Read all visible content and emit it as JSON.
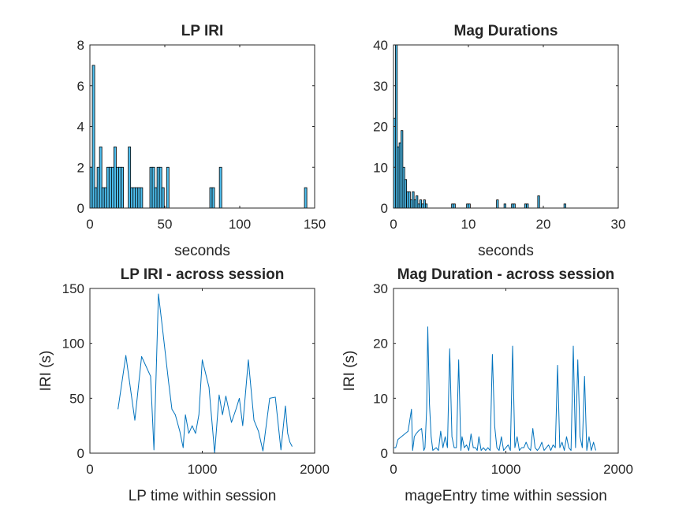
{
  "figure": {
    "background": "#ffffff"
  },
  "chart_data": [
    {
      "id": "lp-iri-hist",
      "type": "bar",
      "title": "LP IRI",
      "xlabel": "seconds",
      "ylabel": "",
      "xlim": [
        0,
        150
      ],
      "ylim": [
        0,
        8
      ],
      "xticks": [
        0,
        50,
        100,
        150
      ],
      "yticks": [
        0,
        2,
        4,
        6,
        8
      ],
      "bar_color": "#4DBEEE",
      "edge_color": "#000000",
      "bin_width": 1.6,
      "x": [
        0.8,
        2.4,
        4.0,
        5.6,
        7.2,
        8.8,
        10.4,
        12.0,
        13.6,
        15.2,
        16.8,
        18.4,
        20.0,
        21.6,
        26.4,
        28.0,
        29.6,
        31.2,
        32.8,
        34.4,
        40.8,
        42.4,
        44.0,
        45.6,
        47.2,
        48.8,
        52.0,
        80.8,
        82.4,
        87.2,
        144.0
      ],
      "values": [
        2,
        7,
        1,
        2,
        3,
        1,
        1,
        2,
        2,
        2,
        3,
        2,
        2,
        2,
        3,
        1,
        1,
        1,
        1,
        1,
        2,
        2,
        1,
        2,
        2,
        1,
        2,
        1,
        1,
        2,
        1
      ]
    },
    {
      "id": "mag-durations-hist",
      "type": "bar",
      "title": "Mag Durations",
      "xlabel": "seconds",
      "ylabel": "",
      "xlim": [
        0,
        30
      ],
      "ylim": [
        0,
        40
      ],
      "xticks": [
        0,
        10,
        20,
        30
      ],
      "yticks": [
        0,
        10,
        20,
        30,
        40
      ],
      "bar_color": "#4DBEEE",
      "edge_color": "#000000",
      "bin_width": 0.25,
      "x": [
        0.125,
        0.375,
        0.625,
        0.875,
        1.125,
        1.375,
        1.625,
        1.875,
        2.125,
        2.375,
        2.625,
        2.875,
        3.125,
        3.375,
        3.625,
        3.875,
        4.125,
        4.375,
        7.875,
        8.125,
        9.875,
        10.125,
        13.875,
        14.875,
        15.875,
        16.125,
        17.625,
        17.875,
        19.375,
        22.875
      ],
      "values": [
        22,
        40,
        15,
        16,
        19,
        10,
        7,
        4,
        4,
        2,
        4,
        2,
        3,
        1,
        2,
        1,
        2,
        1,
        1,
        1,
        1,
        1,
        2,
        1,
        1,
        1,
        1,
        1,
        3,
        1
      ]
    },
    {
      "id": "lp-iri-session",
      "type": "line",
      "title": "LP IRI - across session",
      "xlabel": "LP time within session",
      "ylabel": "IRI (s)",
      "xlim": [
        0,
        2000
      ],
      "ylim": [
        0,
        150
      ],
      "xticks": [
        0,
        1000,
        2000
      ],
      "yticks": [
        0,
        50,
        100,
        150
      ],
      "line_color": "#0072BD",
      "x": [
        250,
        320,
        400,
        460,
        540,
        570,
        610,
        650,
        700,
        730,
        760,
        800,
        830,
        850,
        880,
        910,
        940,
        970,
        1000,
        1060,
        1110,
        1150,
        1180,
        1210,
        1260,
        1300,
        1330,
        1360,
        1410,
        1460,
        1500,
        1540,
        1600,
        1650,
        1700,
        1740,
        1760,
        1780,
        1800
      ],
      "y": [
        40,
        89,
        30,
        88,
        70,
        3,
        145,
        110,
        65,
        40,
        35,
        20,
        5,
        35,
        18,
        25,
        18,
        35,
        85,
        60,
        0,
        53,
        35,
        52,
        28,
        40,
        50,
        25,
        85,
        30,
        20,
        2,
        50,
        51,
        3,
        43,
        18,
        10,
        6
      ]
    },
    {
      "id": "mag-duration-session",
      "type": "line",
      "title": "Mag Duration - across session",
      "xlabel": "mageEntry time within session",
      "ylabel": "IRI (s)",
      "xlim": [
        0,
        2000
      ],
      "ylim": [
        0,
        30
      ],
      "xticks": [
        0,
        1000,
        2000
      ],
      "yticks": [
        0,
        10,
        20,
        30
      ],
      "line_color": "#0072BD",
      "x": [
        5,
        20,
        40,
        70,
        100,
        130,
        160,
        170,
        180,
        185,
        200,
        220,
        250,
        270,
        280,
        295,
        305,
        320,
        335,
        350,
        380,
        400,
        420,
        440,
        460,
        480,
        500,
        520,
        540,
        560,
        580,
        600,
        610,
        630,
        650,
        670,
        690,
        710,
        730,
        745,
        760,
        780,
        800,
        820,
        840,
        860,
        880,
        900,
        920,
        940,
        960,
        980,
        1000,
        1020,
        1040,
        1060,
        1080,
        1100,
        1120,
        1140,
        1160,
        1180,
        1200,
        1220,
        1240,
        1260,
        1280,
        1300,
        1320,
        1340,
        1360,
        1380,
        1400,
        1420,
        1440,
        1460,
        1480,
        1500,
        1520,
        1540,
        1560,
        1580,
        1600,
        1610,
        1620,
        1640,
        1660,
        1680,
        1700,
        1720,
        1740,
        1760,
        1780,
        1800
      ],
      "y": [
        1,
        1,
        2.5,
        3,
        3.5,
        4,
        8,
        0.5,
        2,
        3,
        3.5,
        4,
        4.5,
        0.5,
        1,
        8,
        23,
        9,
        3,
        0.5,
        1,
        0.5,
        4,
        1,
        3,
        1,
        19,
        3,
        1,
        1,
        17,
        0.5,
        3,
        1,
        1.5,
        0.5,
        3.5,
        1,
        1,
        0.5,
        3,
        0.5,
        1,
        0.5,
        1,
        0.5,
        18,
        5,
        1,
        0.5,
        3,
        0.5,
        1,
        1.5,
        0.5,
        19.5,
        1,
        3,
        0.5,
        1,
        1,
        2,
        1,
        0.5,
        4.5,
        1,
        0.5,
        1,
        2,
        0.5,
        1,
        1.5,
        0.5,
        1.5,
        1,
        16,
        1,
        2,
        0.5,
        3,
        1,
        0.5,
        19.5,
        10,
        1,
        17,
        3,
        1,
        14,
        0.5,
        3,
        0.5,
        2,
        0.5
      ]
    }
  ]
}
